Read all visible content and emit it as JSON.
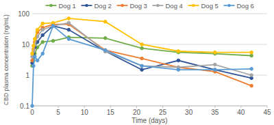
{
  "chart_data": {
    "type": "line",
    "x_label": "Time (days)",
    "y_label": "CBD plasma concentration (ng/mL)",
    "x": [
      0,
      0.25,
      0.5,
      1,
      2,
      4,
      7,
      14,
      21,
      28,
      35,
      42
    ],
    "series": [
      {
        "name": "Dog 1",
        "color": "#70ad47",
        "values": [
          2,
          3,
          5,
          8,
          12,
          13,
          17,
          16,
          7.5,
          5.5,
          5,
          4.3
        ]
      },
      {
        "name": "Dog 2",
        "color": "#2f5597",
        "values": [
          2.5,
          5,
          8,
          12,
          20,
          40,
          30,
          6,
          1.5,
          3,
          1.5,
          0.8
        ]
      },
      {
        "name": "Dog 3",
        "color": "#ed7d31",
        "values": [
          3,
          7,
          12,
          25,
          35,
          45,
          45,
          6.5,
          3.5,
          1.8,
          1.3,
          0.45
        ]
      },
      {
        "name": "Dog 4",
        "color": "#a5a5a5",
        "values": [
          4,
          6,
          10,
          18,
          30,
          40,
          50,
          6,
          2,
          1.8,
          2.2,
          1
        ]
      },
      {
        "name": "Dog 5",
        "color": "#ffc000",
        "values": [
          5,
          9,
          15,
          30,
          48,
          50,
          70,
          55,
          10,
          6,
          5.5,
          5.5
        ]
      },
      {
        "name": "Dog 6",
        "color": "#5b9bd5",
        "values": [
          0.1,
          2,
          4,
          3,
          5,
          40,
          15,
          6.5,
          2,
          1.5,
          1.5,
          1.6
        ]
      }
    ],
    "xlim": [
      0,
      45
    ],
    "xticks": [
      0,
      5,
      10,
      15,
      20,
      25,
      30,
      35,
      40,
      45
    ],
    "ylim": [
      0.1,
      100
    ],
    "yticks": [
      0.1,
      1,
      10,
      100
    ],
    "log": "y",
    "grid": true,
    "legend": "top",
    "marker": "circle"
  }
}
